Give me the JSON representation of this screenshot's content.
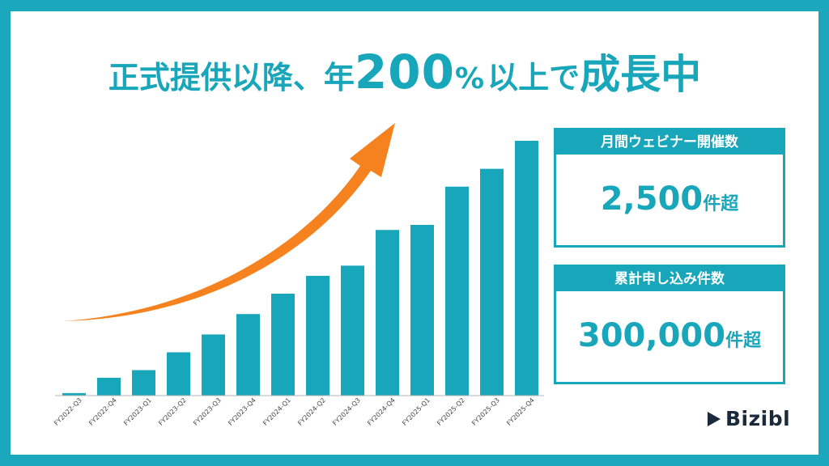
{
  "headline": {
    "part1": "正式提供以降、年",
    "big": "200",
    "pct": "%",
    "part2": "以上で",
    "part3": "成長中"
  },
  "cards": [
    {
      "caption": "月間ウェビナー開催数",
      "number": "2,500",
      "unit": "件超"
    },
    {
      "caption": "累計申し込み件数",
      "number": "300,000",
      "unit": "件超"
    }
  ],
  "brand": {
    "name": "Bizibl"
  },
  "colors": {
    "accent": "#18a6ba",
    "bar": "#18a6ba",
    "arrow": "#f5821f",
    "frame": "#1ba8bd"
  },
  "chart_data": {
    "type": "bar",
    "categories": [
      "FY2022-Q3",
      "FY2022-Q4",
      "FY2023-Q1",
      "FY2023-Q2",
      "FY2023-Q3",
      "FY2023-Q4",
      "FY2024-Q1",
      "FY2024-Q2",
      "FY2024-Q3",
      "FY2024-Q4",
      "FY2025-Q1",
      "FY2025-Q2",
      "FY2025-Q3",
      "FY2025-Q4"
    ],
    "values": [
      1,
      7,
      10,
      17,
      24,
      32,
      40,
      47,
      51,
      65,
      67,
      82,
      89,
      100
    ],
    "ylim": [
      0,
      100
    ],
    "grid": false,
    "annotation": "upward-arrow"
  }
}
